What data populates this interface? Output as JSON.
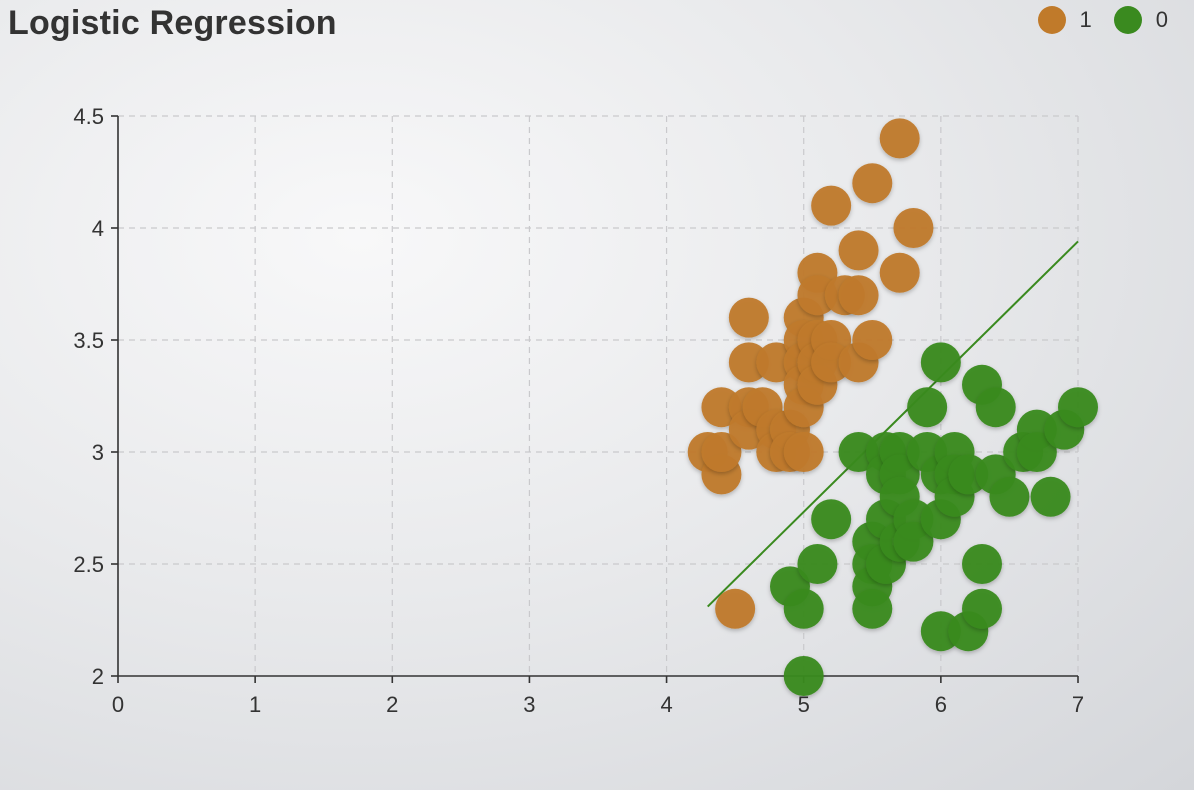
{
  "chart_data": {
    "type": "scatter",
    "title": "Logistic Regression",
    "xlabel": "",
    "ylabel": "",
    "xlim": [
      0,
      7
    ],
    "ylim": [
      2,
      4.5
    ],
    "x_ticks": [
      "0",
      "1",
      "2",
      "3",
      "4",
      "5",
      "6",
      "7"
    ],
    "y_ticks": [
      "2",
      "2.5",
      "3",
      "3.5",
      "4",
      "4.5"
    ],
    "grid": true,
    "legend_position": "top-right",
    "series": [
      {
        "name": "1",
        "color": "#c07a2a",
        "points": [
          [
            4.4,
            3.2
          ],
          [
            4.3,
            3.0
          ],
          [
            4.4,
            2.9
          ],
          [
            4.4,
            3.0
          ],
          [
            4.5,
            2.3
          ],
          [
            4.6,
            3.6
          ],
          [
            4.6,
            3.4
          ],
          [
            4.6,
            3.2
          ],
          [
            4.6,
            3.1
          ],
          [
            4.7,
            3.2
          ],
          [
            4.8,
            3.4
          ],
          [
            4.8,
            3.1
          ],
          [
            4.8,
            3.0
          ],
          [
            4.9,
            3.1
          ],
          [
            4.9,
            3.0
          ],
          [
            5.0,
            3.6
          ],
          [
            5.0,
            3.5
          ],
          [
            5.0,
            3.4
          ],
          [
            5.0,
            3.3
          ],
          [
            5.0,
            3.2
          ],
          [
            5.0,
            3.0
          ],
          [
            5.1,
            3.8
          ],
          [
            5.1,
            3.7
          ],
          [
            5.1,
            3.5
          ],
          [
            5.1,
            3.4
          ],
          [
            5.1,
            3.3
          ],
          [
            5.2,
            4.1
          ],
          [
            5.2,
            3.5
          ],
          [
            5.2,
            3.4
          ],
          [
            5.3,
            3.7
          ],
          [
            5.4,
            3.9
          ],
          [
            5.4,
            3.7
          ],
          [
            5.4,
            3.4
          ],
          [
            5.5,
            4.2
          ],
          [
            5.5,
            3.5
          ],
          [
            5.7,
            4.4
          ],
          [
            5.7,
            3.8
          ],
          [
            5.8,
            4.0
          ]
        ]
      },
      {
        "name": "0",
        "color": "#3a8a1f",
        "points": [
          [
            4.9,
            2.4
          ],
          [
            5.0,
            2.3
          ],
          [
            5.0,
            2.0
          ],
          [
            5.1,
            2.5
          ],
          [
            5.2,
            2.7
          ],
          [
            5.4,
            3.0
          ],
          [
            5.5,
            2.6
          ],
          [
            5.5,
            2.5
          ],
          [
            5.5,
            2.4
          ],
          [
            5.5,
            2.3
          ],
          [
            5.6,
            3.0
          ],
          [
            5.6,
            2.9
          ],
          [
            5.6,
            2.7
          ],
          [
            5.6,
            2.5
          ],
          [
            5.7,
            3.0
          ],
          [
            5.7,
            2.9
          ],
          [
            5.7,
            2.8
          ],
          [
            5.7,
            2.6
          ],
          [
            5.8,
            2.7
          ],
          [
            5.8,
            2.6
          ],
          [
            5.9,
            3.2
          ],
          [
            5.9,
            3.0
          ],
          [
            6.0,
            3.4
          ],
          [
            6.0,
            2.9
          ],
          [
            6.0,
            2.7
          ],
          [
            6.0,
            2.2
          ],
          [
            6.1,
            3.0
          ],
          [
            6.1,
            2.9
          ],
          [
            6.1,
            2.8
          ],
          [
            6.2,
            2.9
          ],
          [
            6.2,
            2.2
          ],
          [
            6.3,
            3.3
          ],
          [
            6.3,
            2.5
          ],
          [
            6.3,
            2.3
          ],
          [
            6.4,
            3.2
          ],
          [
            6.4,
            2.9
          ],
          [
            6.5,
            2.8
          ],
          [
            6.6,
            3.0
          ],
          [
            6.7,
            3.1
          ],
          [
            6.7,
            3.0
          ],
          [
            6.8,
            2.8
          ],
          [
            6.9,
            3.1
          ],
          [
            7.0,
            3.2
          ]
        ]
      }
    ],
    "line": {
      "color": "#3a8a1f",
      "points": [
        [
          4.3,
          2.31
        ],
        [
          7.0,
          3.94
        ]
      ]
    }
  }
}
